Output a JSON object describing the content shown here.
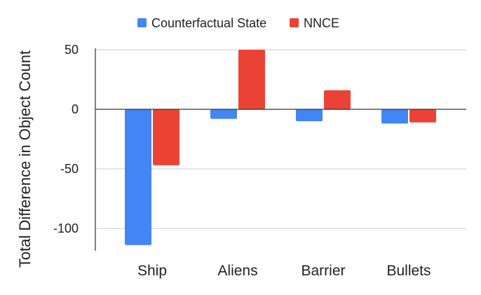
{
  "chart_data": {
    "type": "bar",
    "title": "",
    "xlabel": "",
    "ylabel": "Total Difference in Object Count",
    "categories": [
      "Ship",
      "Aliens",
      "Barrier",
      "Bullets"
    ],
    "series": [
      {
        "name": "Counterfactual State",
        "color": "#4285F4",
        "values": [
          -114,
          -8,
          -10,
          -12
        ]
      },
      {
        "name": "NNCE",
        "color": "#EA4335",
        "values": [
          -47,
          50,
          16,
          -11
        ]
      }
    ],
    "ylim": [
      -120,
      50
    ],
    "yticks": [
      50,
      0,
      -50,
      -100
    ],
    "ytick_labels": [
      "50",
      "0",
      "-50",
      "-100"
    ],
    "grid": true,
    "legend": "top"
  }
}
